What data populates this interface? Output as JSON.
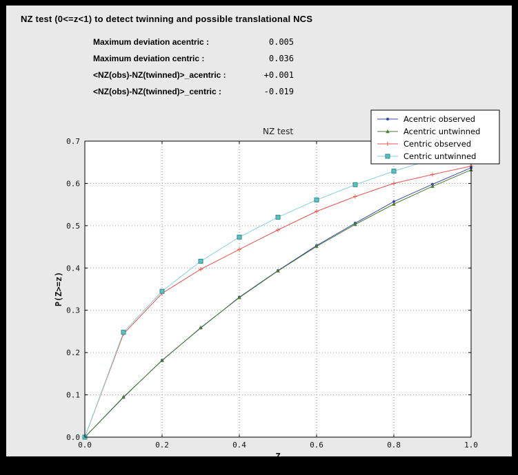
{
  "window": {
    "background": "#e9e9e9",
    "border_color": "#000000"
  },
  "header": {
    "title": "NZ test (0<=z<1) to detect twinning and possible translational NCS"
  },
  "stats": {
    "rows": [
      {
        "label": "Maximum deviation acentric :",
        "value": "0.005"
      },
      {
        "label": "Maximum deviation centric :",
        "value": "0.036"
      },
      {
        "label": "<NZ(obs)-NZ(twinned)>_acentric :",
        "value": "+0.001"
      },
      {
        "label": "<NZ(obs)-NZ(twinned)>_centric :",
        "value": "-0.019"
      }
    ]
  },
  "chart_data": {
    "type": "line",
    "title": "NZ test",
    "xlabel": "Z",
    "ylabel": "P(Z>=z)",
    "xlim": [
      0.0,
      1.0
    ],
    "ylim": [
      0.0,
      0.7
    ],
    "xticks": [
      0.0,
      0.2,
      0.4,
      0.6,
      0.8,
      1.0
    ],
    "yticks": [
      0.0,
      0.1,
      0.2,
      0.3,
      0.4,
      0.5,
      0.6,
      0.7
    ],
    "grid": true,
    "grid_style": "dotted",
    "legend_position": "top-right",
    "x": [
      0.0,
      0.1,
      0.2,
      0.3,
      0.4,
      0.5,
      0.6,
      0.7,
      0.8,
      0.9,
      1.0
    ],
    "series": [
      {
        "name": "Acentric observed",
        "color": "#3548a8",
        "marker": "dot",
        "values": [
          0.0,
          0.094,
          0.182,
          0.258,
          0.331,
          0.394,
          0.453,
          0.506,
          0.557,
          0.598,
          0.637
        ]
      },
      {
        "name": "Acentric untwinned",
        "color": "#4f7b34",
        "marker": "triangle",
        "values": [
          0.0,
          0.095,
          0.181,
          0.259,
          0.33,
          0.393,
          0.451,
          0.503,
          0.551,
          0.593,
          0.632
        ]
      },
      {
        "name": "Centric observed",
        "color": "#e8544c",
        "marker": "plus",
        "values": [
          0.0,
          0.244,
          0.34,
          0.397,
          0.444,
          0.49,
          0.534,
          0.569,
          0.6,
          0.621,
          0.641
        ]
      },
      {
        "name": "Centric untwinned",
        "color": "#86d3d3",
        "marker": "square",
        "marker_fill": "#5ec0c0",
        "marker_edge": "#2d8c8c",
        "values": [
          0.0,
          0.248,
          0.345,
          0.416,
          0.473,
          0.52,
          0.561,
          0.597,
          0.629,
          0.657,
          0.683
        ]
      }
    ]
  }
}
